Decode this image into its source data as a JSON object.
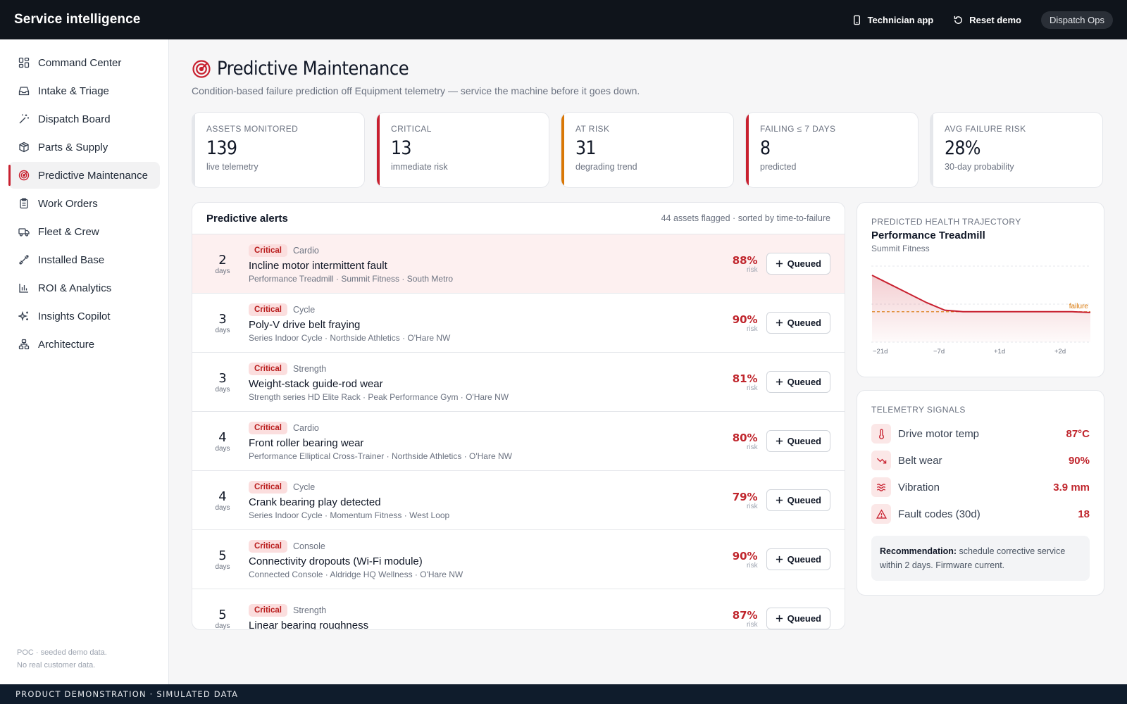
{
  "app": {
    "title": "Service intelligence"
  },
  "topbar": {
    "technician_app": "Technician app",
    "reset_demo": "Reset demo",
    "role": "Dispatch Ops"
  },
  "sidebar": {
    "items": [
      {
        "label": "Command Center",
        "icon": "dashboard-icon"
      },
      {
        "label": "Intake & Triage",
        "icon": "inbox-icon"
      },
      {
        "label": "Dispatch Board",
        "icon": "wand-icon"
      },
      {
        "label": "Parts & Supply",
        "icon": "package-icon"
      },
      {
        "label": "Predictive Maintenance",
        "icon": "radar-icon",
        "active": true
      },
      {
        "label": "Work Orders",
        "icon": "clipboard-icon"
      },
      {
        "label": "Fleet & Crew",
        "icon": "truck-icon"
      },
      {
        "label": "Installed Base",
        "icon": "dumbbell-icon"
      },
      {
        "label": "ROI & Analytics",
        "icon": "bar-chart-icon"
      },
      {
        "label": "Insights Copilot",
        "icon": "sparkles-icon"
      },
      {
        "label": "Architecture",
        "icon": "network-icon"
      }
    ],
    "footer_line1": "POC · seeded demo data.",
    "footer_line2": "No real customer data."
  },
  "banner": "PRODUCT DEMONSTRATION · SIMULATED DATA",
  "page": {
    "title": "Predictive Maintenance",
    "subtitle": "Condition-based failure prediction off Equipment telemetry — service the machine before it goes down."
  },
  "kpis": [
    {
      "label": "ASSETS MONITORED",
      "value": "139",
      "note": "live telemetry",
      "accent": "#e5e7eb"
    },
    {
      "label": "CRITICAL",
      "value": "13",
      "note": "immediate risk",
      "accent": "#c8202f"
    },
    {
      "label": "AT RISK",
      "value": "31",
      "note": "degrading trend",
      "accent": "#d97706"
    },
    {
      "label": "FAILING ≤ 7 DAYS",
      "value": "8",
      "note": "predicted",
      "accent": "#c8202f"
    },
    {
      "label": "AVG FAILURE RISK",
      "value": "28%",
      "note": "30-day probability",
      "accent": "#e5e7eb"
    }
  ],
  "alerts": {
    "title": "Predictive alerts",
    "meta": "44 assets flagged · sorted by time-to-failure",
    "days_unit": "days",
    "risk_unit": "risk",
    "rows": [
      {
        "days": "2",
        "badge": "Critical",
        "category": "Cardio",
        "title": "Incline motor intermittent fault",
        "sub": "Performance Treadmill · Summit Fitness · South Metro",
        "risk": "88%",
        "action": "Queued"
      },
      {
        "days": "3",
        "badge": "Critical",
        "category": "Cycle",
        "title": "Poly-V drive belt fraying",
        "sub": "Series Indoor Cycle · Northside Athletics · O'Hare NW",
        "risk": "90%",
        "action": "Queued"
      },
      {
        "days": "3",
        "badge": "Critical",
        "category": "Strength",
        "title": "Weight-stack guide-rod wear",
        "sub": "Strength series HD Elite Rack · Peak Performance Gym · O'Hare NW",
        "risk": "81%",
        "action": "Queued"
      },
      {
        "days": "4",
        "badge": "Critical",
        "category": "Cardio",
        "title": "Front roller bearing wear",
        "sub": "Performance Elliptical Cross-Trainer · Northside Athletics · O'Hare NW",
        "risk": "80%",
        "action": "Queued"
      },
      {
        "days": "4",
        "badge": "Critical",
        "category": "Cycle",
        "title": "Crank bearing play detected",
        "sub": "Series Indoor Cycle · Momentum Fitness · West Loop",
        "risk": "79%",
        "action": "Queued"
      },
      {
        "days": "5",
        "badge": "Critical",
        "category": "Console",
        "title": "Connectivity dropouts (Wi-Fi module)",
        "sub": "Connected Console · Aldridge HQ Wellness · O'Hare NW",
        "risk": "90%",
        "action": "Queued"
      },
      {
        "days": "5",
        "badge": "Critical",
        "category": "Strength",
        "title": "Linear bearing roughness",
        "sub": "",
        "risk": "87%",
        "action": "Queued"
      }
    ]
  },
  "trajectory": {
    "label": "PREDICTED HEALTH TRAJECTORY",
    "asset": "Performance Treadmill",
    "customer": "Summit Fitness",
    "failure_label": "failure",
    "x_ticks": [
      "−21d",
      "−7d",
      "+1d",
      "+2d"
    ],
    "health": [
      0.94,
      0.88,
      0.82,
      0.76,
      0.71,
      0.7,
      0.7,
      0.7,
      0.7,
      0.7,
      0.7,
      0.7,
      0.695
    ],
    "failure_threshold": 0.7,
    "line_color": "#c8202f",
    "threshold_color": "#d97706"
  },
  "telemetry": {
    "label": "TELEMETRY SIGNALS",
    "signals": [
      {
        "name": "Drive motor temp",
        "value": "87°C",
        "icon": "thermometer-icon"
      },
      {
        "name": "Belt wear",
        "value": "90%",
        "icon": "trend-down-icon"
      },
      {
        "name": "Vibration",
        "value": "3.9 mm",
        "icon": "waves-icon"
      },
      {
        "name": "Fault codes (30d)",
        "value": "18",
        "icon": "alert-triangle-icon"
      }
    ],
    "recommendation_label": "Recommendation:",
    "recommendation_text": " schedule corrective service within 2 days. Firmware current."
  }
}
